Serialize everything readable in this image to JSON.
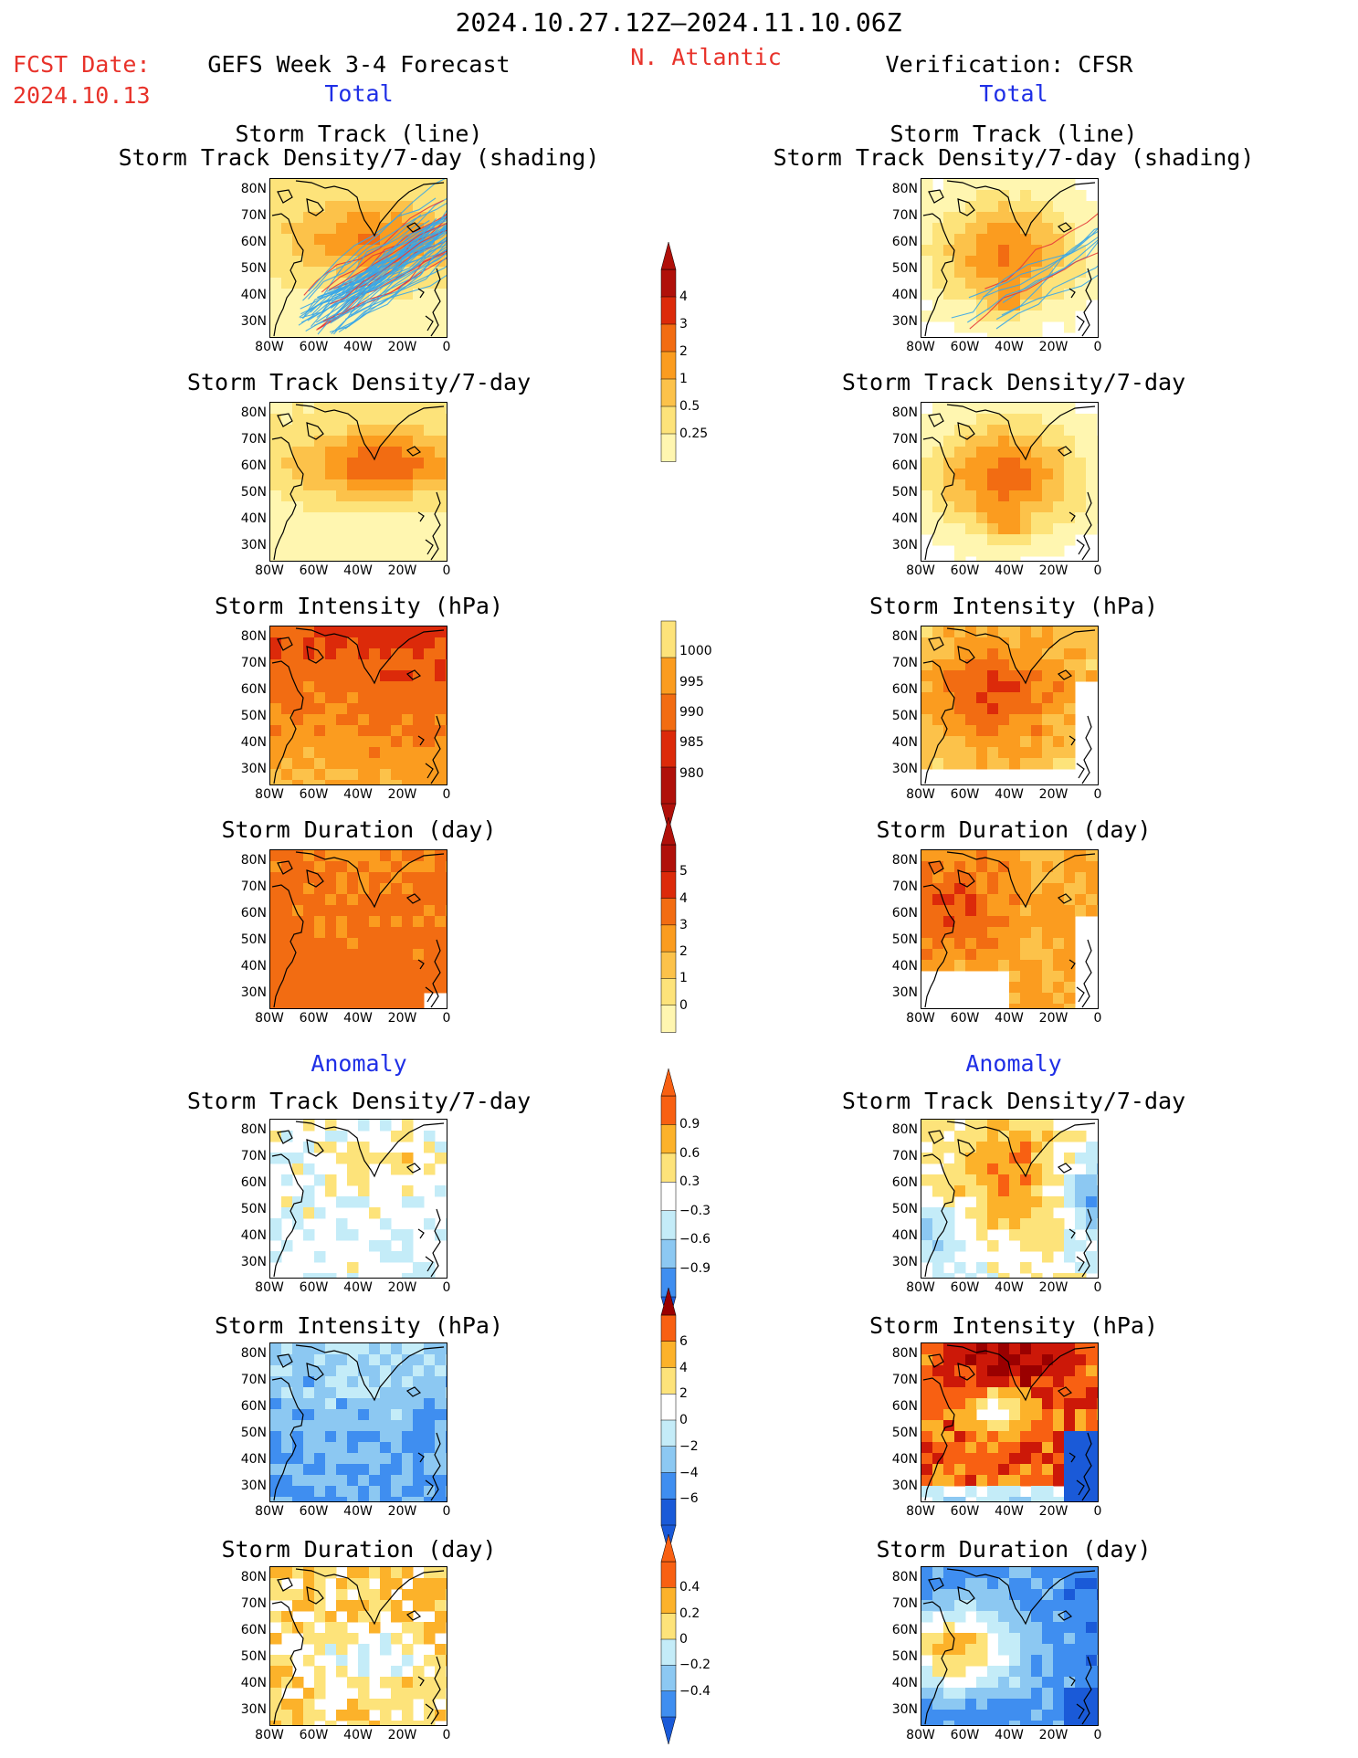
{
  "header": {
    "period": "2024.10.27.12Z–2024.11.10.06Z",
    "fcst_label": "FCST Date:",
    "fcst_date": "2024.10.13",
    "forecast_title": "GEFS Week 3-4 Forecast",
    "region": "N. Atlantic",
    "verification_title": "Verification: CFSR",
    "total_label": "Total",
    "anomaly_label": "Anomaly"
  },
  "panel_titles": {
    "track_line": "Storm Track (line)",
    "track_shading": "Storm Track Density/7-day (shading)",
    "density": "Storm Track Density/7-day",
    "intensity": "Storm Intensity (hPa)",
    "duration": "Storm Duration (day)"
  },
  "axes": {
    "lat_ticks": [
      "80N",
      "70N",
      "60N",
      "50N",
      "40N",
      "30N"
    ],
    "lon_ticks": [
      "80W",
      "60W",
      "40W",
      "20W",
      "0"
    ]
  },
  "colorbars": {
    "density": [
      "4",
      "3",
      "2",
      "1",
      "0.5",
      "0.25"
    ],
    "intensity": [
      "1000",
      "995",
      "990",
      "985",
      "980"
    ],
    "duration": [
      "5",
      "4",
      "3",
      "2",
      "1",
      "0"
    ],
    "density_anom": [
      "0.9",
      "0.6",
      "0.3",
      "−0.3",
      "−0.6",
      "−0.9"
    ],
    "intensity_anom": [
      "6",
      "4",
      "2",
      "0",
      "−2",
      "−4",
      "−6"
    ],
    "duration_anom": [
      "0.4",
      "0.2",
      "0",
      "−0.2",
      "−0.4"
    ]
  },
  "colors": {
    "seq": [
      "#fff6b0",
      "#fde37a",
      "#fcc24a",
      "#fb9c1f",
      "#f26c12",
      "#dc2a0a",
      "#b0100a"
    ],
    "div": [
      "#1a5ad8",
      "#3f8ef0",
      "#8cc8f2",
      "#c4ecf8",
      "#ffffff",
      "#fde37a",
      "#fcb22a",
      "#f86012",
      "#cc1808",
      "#9a0000"
    ],
    "track_line": "#39a6e8",
    "track_line_red": "#e63a3a"
  }
}
